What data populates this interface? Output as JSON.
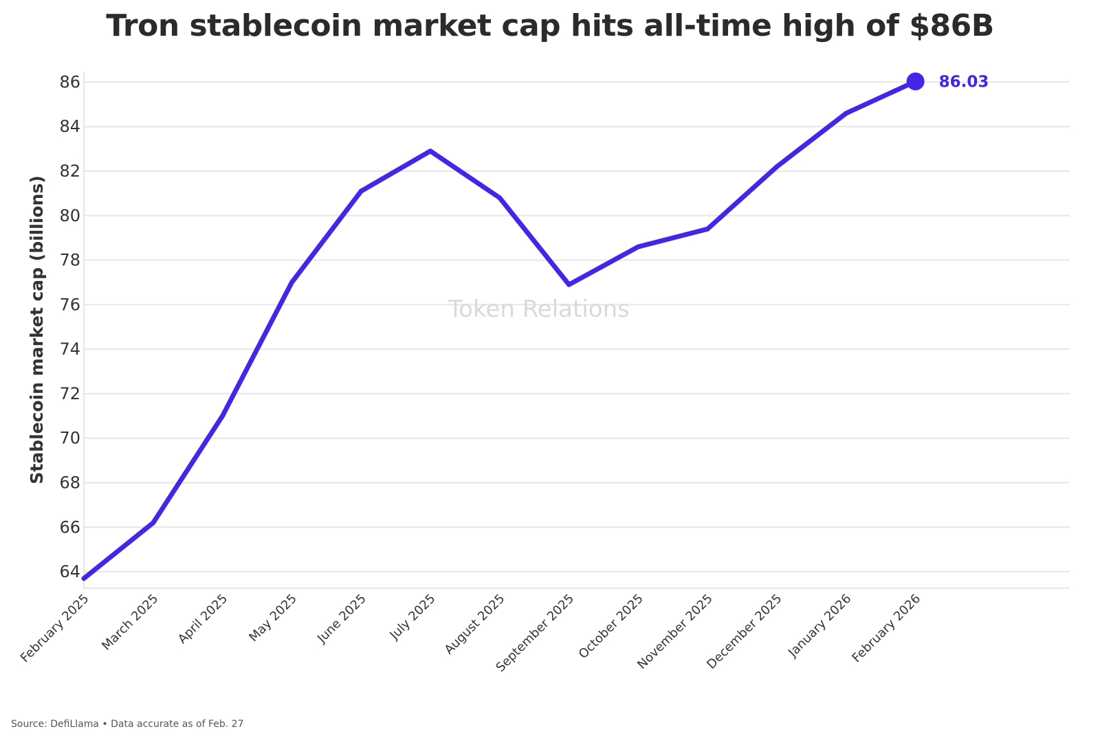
{
  "chart_data": {
    "type": "line",
    "title": "Tron stablecoin market cap hits all-time high of $86B",
    "xlabel": "",
    "ylabel": "Stablecoin market cap (billions)",
    "categories": [
      "February 2025",
      "March 2025",
      "April 2025",
      "May 2025",
      "June 2025",
      "July 2025",
      "August 2025",
      "September 2025",
      "October 2025",
      "November 2025",
      "December 2025",
      "January 2026",
      "February 2026"
    ],
    "series": [
      {
        "name": "Tron stablecoin market cap",
        "values": [
          63.7,
          66.2,
          71.0,
          77.0,
          81.1,
          82.9,
          80.8,
          76.9,
          78.6,
          79.4,
          82.2,
          84.6,
          86.03
        ]
      }
    ],
    "yticks": [
      64,
      66,
      68,
      70,
      72,
      74,
      76,
      78,
      80,
      82,
      84,
      86
    ],
    "ylim": [
      63.6,
      86.6
    ],
    "grid": true,
    "end_label": "86.03",
    "watermark": "Token Relations"
  },
  "colors": {
    "line": "#4525e8",
    "grid": "#e6e6e6",
    "text": "#333333"
  },
  "footer": {
    "source": "Source: DefiLlama • Data accurate as of Feb. 27"
  }
}
